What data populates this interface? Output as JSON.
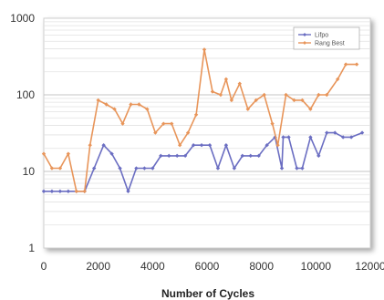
{
  "chart_data": {
    "type": "line",
    "title": "",
    "xlabel": "Number of Cycles",
    "ylabel": "",
    "xlim": [
      0,
      12000
    ],
    "ylim": [
      1,
      1000
    ],
    "yscale": "log",
    "grid": true,
    "legend_position": "top-right",
    "x_ticks": [
      "0",
      "2000",
      "4000",
      "6000",
      "8000",
      "10000",
      "12000"
    ],
    "y_ticks": [
      "1",
      "10",
      "100",
      "1000"
    ],
    "series": [
      {
        "name": "Lifpo",
        "color": "#6b6ec2",
        "marker": "diamond",
        "points": [
          [
            0,
            5.5
          ],
          [
            300,
            5.5
          ],
          [
            600,
            5.5
          ],
          [
            900,
            5.5
          ],
          [
            1200,
            5.5
          ],
          [
            1500,
            5.5
          ],
          [
            1850,
            11
          ],
          [
            2200,
            22
          ],
          [
            2500,
            17
          ],
          [
            2800,
            11
          ],
          [
            3100,
            5.5
          ],
          [
            3400,
            11
          ],
          [
            3700,
            11
          ],
          [
            4000,
            11
          ],
          [
            4300,
            16
          ],
          [
            4600,
            16
          ],
          [
            4900,
            16
          ],
          [
            5200,
            16
          ],
          [
            5500,
            22
          ],
          [
            5800,
            22
          ],
          [
            6100,
            22
          ],
          [
            6400,
            11
          ],
          [
            6700,
            22
          ],
          [
            7000,
            11
          ],
          [
            7300,
            16
          ],
          [
            7600,
            16
          ],
          [
            7900,
            16
          ],
          [
            8200,
            22
          ],
          [
            8500,
            28
          ],
          [
            8750,
            11
          ],
          [
            8800,
            28
          ],
          [
            9000,
            28
          ],
          [
            9300,
            11
          ],
          [
            9500,
            11
          ],
          [
            9800,
            28
          ],
          [
            10100,
            16
          ],
          [
            10400,
            32
          ],
          [
            10700,
            32
          ],
          [
            11000,
            28
          ],
          [
            11300,
            28
          ],
          [
            11700,
            32
          ]
        ]
      },
      {
        "name": "Rang Best",
        "color": "#e8955a",
        "marker": "diamond",
        "points": [
          [
            0,
            17
          ],
          [
            300,
            11
          ],
          [
            600,
            11
          ],
          [
            900,
            17
          ],
          [
            1200,
            5.5
          ],
          [
            1500,
            5.5
          ],
          [
            1700,
            22
          ],
          [
            2000,
            85
          ],
          [
            2300,
            75
          ],
          [
            2600,
            65
          ],
          [
            2900,
            42
          ],
          [
            3200,
            75
          ],
          [
            3500,
            75
          ],
          [
            3800,
            65
          ],
          [
            4100,
            32
          ],
          [
            4400,
            42
          ],
          [
            4700,
            42
          ],
          [
            5000,
            22
          ],
          [
            5300,
            32
          ],
          [
            5600,
            55
          ],
          [
            5900,
            390
          ],
          [
            6200,
            110
          ],
          [
            6500,
            100
          ],
          [
            6700,
            160
          ],
          [
            6900,
            85
          ],
          [
            7200,
            140
          ],
          [
            7500,
            65
          ],
          [
            7800,
            85
          ],
          [
            8100,
            100
          ],
          [
            8400,
            42
          ],
          [
            8600,
            22
          ],
          [
            8900,
            100
          ],
          [
            9200,
            85
          ],
          [
            9500,
            85
          ],
          [
            9800,
            65
          ],
          [
            10100,
            100
          ],
          [
            10400,
            100
          ],
          [
            10800,
            160
          ],
          [
            11100,
            250
          ],
          [
            11500,
            250
          ]
        ]
      }
    ]
  }
}
